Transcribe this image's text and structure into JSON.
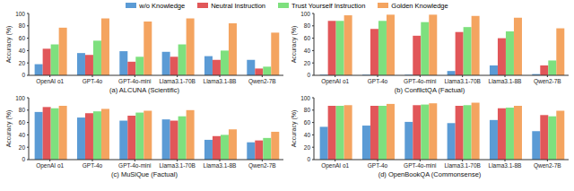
{
  "chart_data": [
    {
      "type": "bar",
      "title": "(a) ALCUNA (Scientific)",
      "y_label": "Accuracy (%)",
      "categories": [
        "OpenAI o1",
        "GPT-4o",
        "GPT-4o-mini",
        "Llama3.1-70B",
        "Llama3.1-8B",
        "Qwen2-7B"
      ],
      "series": [
        {
          "name": "w/o Knowledge",
          "color": "#5b9bd5",
          "values": [
            18,
            36,
            39,
            38,
            31,
            25
          ]
        },
        {
          "name": "Neutral Instruction",
          "color": "#e15759",
          "values": [
            43,
            33,
            22,
            30,
            25,
            11
          ]
        },
        {
          "name": "Trust Yourself Instruction",
          "color": "#7ee07e",
          "values": [
            50,
            56,
            30,
            50,
            40,
            14
          ]
        },
        {
          "name": "Golden Knowledge",
          "color": "#f4a460",
          "values": [
            77,
            92,
            87,
            92,
            84,
            69
          ]
        }
      ],
      "ylim": [
        0,
        100
      ],
      "yticks": [
        0,
        20,
        40,
        60,
        80,
        100
      ],
      "grid": false
    },
    {
      "type": "bar",
      "title": "(b) ConflictQA (Factual)",
      "y_label": "Accuracy (%)",
      "categories": [
        "OpenAI o1",
        "GPT-4o",
        "GPT-4o-mini",
        "Llama3.1-70B",
        "Llama3.1-8B",
        "Qwen2-7B"
      ],
      "series": [
        {
          "name": "w/o Knowledge",
          "color": "#5b9bd5",
          "values": [
            1,
            1,
            1,
            7,
            16,
            2
          ]
        },
        {
          "name": "Neutral Instruction",
          "color": "#e15759",
          "values": [
            88,
            75,
            64,
            70,
            60,
            16
          ]
        },
        {
          "name": "Trust Yourself Instruction",
          "color": "#7ee07e",
          "values": [
            88,
            88,
            86,
            78,
            71,
            24
          ]
        },
        {
          "name": "Golden Knowledge",
          "color": "#f4a460",
          "values": [
            97,
            98,
            98,
            96,
            93,
            76
          ]
        }
      ],
      "ylim": [
        0,
        100
      ],
      "yticks": [
        0,
        20,
        40,
        60,
        80,
        100
      ],
      "grid": false
    },
    {
      "type": "bar",
      "title": "(c) MuSiQue (Factual)",
      "y_label": "Accuracy (%)",
      "categories": [
        "OpenAI o1",
        "GPT-4o",
        "GPT-4o-mini",
        "Llama3.1-70B",
        "Llama3.1-8B",
        "Qwen2-7B"
      ],
      "series": [
        {
          "name": "w/o Knowledge",
          "color": "#5b9bd5",
          "values": [
            77,
            68,
            63,
            65,
            32,
            28
          ]
        },
        {
          "name": "Neutral Instruction",
          "color": "#e15759",
          "values": [
            85,
            75,
            71,
            63,
            38,
            31
          ]
        },
        {
          "name": "Trust Yourself Instruction",
          "color": "#7ee07e",
          "values": [
            83,
            78,
            76,
            70,
            40,
            35
          ]
        },
        {
          "name": "Golden Knowledge",
          "color": "#f4a460",
          "values": [
            87,
            82,
            79,
            80,
            49,
            45
          ]
        }
      ],
      "ylim": [
        0,
        100
      ],
      "yticks": [
        0,
        20,
        40,
        60,
        80,
        100
      ],
      "grid": false
    },
    {
      "type": "bar",
      "title": "(d) OpenBookQA (Commonsense)",
      "y_label": "Accuracy (%)",
      "categories": [
        "OpenAI o1",
        "GPT-4o",
        "GPT-4o-mini",
        "Llama3.1-70B",
        "Llama3.1-8B",
        "Qwen2-7B"
      ],
      "series": [
        {
          "name": "w/o Knowledge",
          "color": "#5b9bd5",
          "values": [
            53,
            55,
            61,
            59,
            64,
            46
          ]
        },
        {
          "name": "Neutral Instruction",
          "color": "#e15759",
          "values": [
            87,
            87,
            88,
            87,
            83,
            72
          ]
        },
        {
          "name": "Trust Yourself Instruction",
          "color": "#7ee07e",
          "values": [
            87,
            87,
            89,
            88,
            84,
            70
          ]
        },
        {
          "name": "Golden Knowledge",
          "color": "#f4a460",
          "values": [
            88,
            90,
            91,
            92,
            87,
            79
          ]
        }
      ],
      "ylim": [
        0,
        100
      ],
      "yticks": [
        0,
        20,
        40,
        60,
        80,
        100
      ],
      "grid": false
    }
  ]
}
